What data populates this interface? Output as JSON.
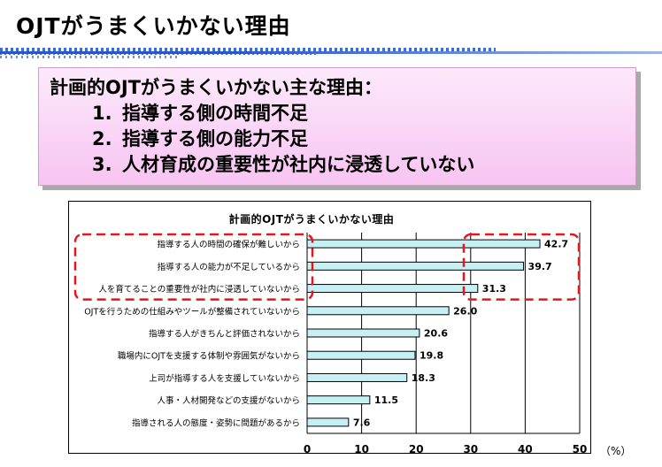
{
  "slide": {
    "title": "OJTがうまくいかない理由"
  },
  "reasons": {
    "heading": "計画的OJTがうまくいかない主な理由：",
    "items": [
      {
        "num": "1.",
        "text": "指導する側の時間不足"
      },
      {
        "num": "2.",
        "text": "指導する側の能力不足"
      },
      {
        "num": "3.",
        "text": "人材育成の重要性が社内に浸透していない"
      }
    ]
  },
  "chart_data": {
    "type": "bar",
    "orientation": "horizontal",
    "title": "計画的OJTがうまくいかない理由",
    "unit": "（%）",
    "categories": [
      "指導する人の時間の確保が難しいから",
      "指導する人の能力が不足しているから",
      "人を育てることの重要性が社内に浸透していないから",
      "OJTを行うための仕組みやツールが整備されていないから",
      "指導する人がきちんと評価されないから",
      "職場内にOJTを支援する体制や雰囲気がないから",
      "上司が指導する人を支援していないから",
      "人事・人材開発などの支援がないから",
      "指導される人の態度・姿勢に問題があるから"
    ],
    "values": [
      42.7,
      39.7,
      31.3,
      26.0,
      20.6,
      19.8,
      18.3,
      11.5,
      7.6
    ],
    "value_labels": [
      "42.7",
      "39.7",
      "31.3",
      "26.0",
      "20.6",
      "19.8",
      "18.3",
      "11.5",
      "7.6"
    ],
    "xlim": [
      0,
      50
    ],
    "xticks": [
      0,
      10,
      20,
      30,
      40,
      50
    ],
    "xtick_labels": [
      "0",
      "10",
      "20",
      "30",
      "40",
      "50"
    ],
    "grid": true,
    "highlighted_top_n": 3,
    "colors": {
      "bar_fill": "#c6f0f3",
      "bar_stroke": "#000000",
      "highlight": "#e8141e"
    }
  }
}
